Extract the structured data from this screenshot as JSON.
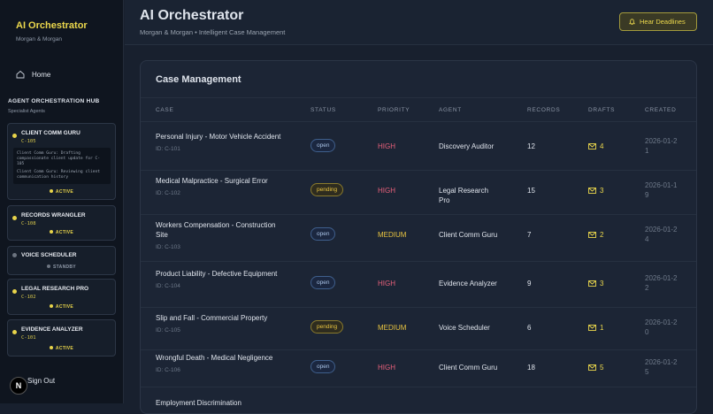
{
  "sidebar": {
    "brand": "AI Orchestrator",
    "firm": "Morgan & Morgan",
    "nav": [
      "Home"
    ],
    "hub_title": "AGENT ORCHESTRATION HUB",
    "hub_subtitle": "Specialist Agents",
    "agents": [
      {
        "name": "CLIENT COMM GURU",
        "case": "C-105",
        "logs": [
          "Client Comm Guru: Drafting compassionate client update for C-105",
          "Client Comm Guru: Reviewing client communication history"
        ],
        "status": "ACTIVE"
      },
      {
        "name": "RECORDS WRANGLER",
        "case": "C-108",
        "status": "ACTIVE"
      },
      {
        "name": "VOICE SCHEDULER",
        "status": "STANDBY"
      },
      {
        "name": "LEGAL RESEARCH PRO",
        "case": "C-102",
        "status": "ACTIVE"
      },
      {
        "name": "EVIDENCE ANALYZER",
        "case": "C-101",
        "status": "ACTIVE"
      }
    ],
    "avatar": "N",
    "sign_out": "Sign Out"
  },
  "header": {
    "title": "AI Orchestrator",
    "subtitle": "Morgan & Morgan • Intelligent Case Management",
    "button": "Hear Deadlines"
  },
  "panel": {
    "title": "Case Management",
    "columns": [
      "CASE",
      "STATUS",
      "PRIORITY",
      "AGENT",
      "RECORDS",
      "DRAFTS",
      "CREATED"
    ],
    "rows": [
      {
        "case": "Personal Injury - Motor Vehicle Accident",
        "id": "ID: C-101",
        "status": "open",
        "priority": "HIGH",
        "agent": "Discovery Auditor",
        "records": "12",
        "drafts": "4",
        "created": "2026-01-21"
      },
      {
        "case": "Medical Malpractice - Surgical Error",
        "id": "ID: C-102",
        "status": "pending",
        "priority": "HIGH",
        "agent": "Legal Research Pro",
        "records": "15",
        "drafts": "3",
        "created": "2026-01-19"
      },
      {
        "case": "Workers Compensation - Construction Site",
        "id": "ID: C-103",
        "status": "open",
        "priority": "MEDIUM",
        "agent": "Client Comm Guru",
        "records": "7",
        "drafts": "2",
        "created": "2026-01-24"
      },
      {
        "case": "Product Liability - Defective Equipment",
        "id": "ID: C-104",
        "status": "open",
        "priority": "HIGH",
        "agent": "Evidence Analyzer",
        "records": "9",
        "drafts": "3",
        "created": "2026-01-22"
      },
      {
        "case": "Slip and Fall - Commercial Property",
        "id": "ID: C-105",
        "status": "pending",
        "priority": "MEDIUM",
        "agent": "Voice Scheduler",
        "records": "6",
        "drafts": "1",
        "created": "2026-01-20"
      },
      {
        "case": "Wrongful Death - Medical Negligence",
        "id": "ID: C-106",
        "status": "open",
        "priority": "HIGH",
        "agent": "Client Comm Guru",
        "records": "18",
        "drafts": "5",
        "created": "2026-01-25"
      },
      {
        "case": "Employment Discrimination"
      }
    ]
  }
}
